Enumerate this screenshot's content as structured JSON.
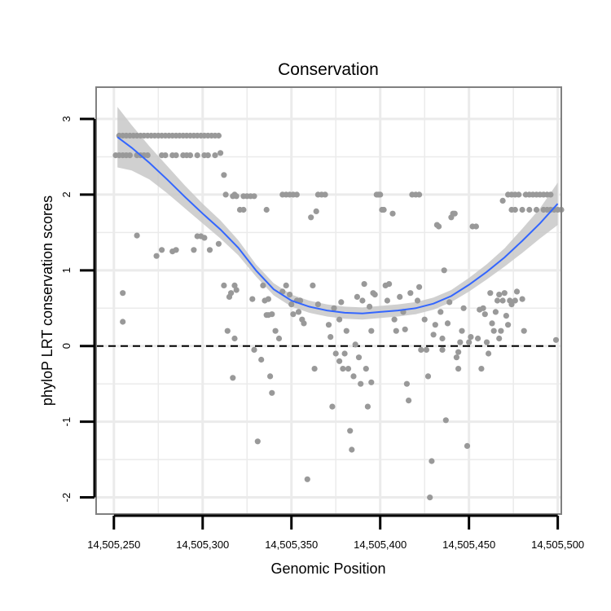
{
  "chart_data": {
    "type": "scatter",
    "title": "Conservation",
    "xlabel": "Genomic Position",
    "ylabel": "phyloP LRT conservation scores",
    "xlim": [
      14505240,
      14505502
    ],
    "ylim": [
      -2.22,
      3.42
    ],
    "x_ticks": [
      14505250,
      14505300,
      14505350,
      14505400,
      14505450,
      14505500
    ],
    "x_tick_labels": [
      "14,505,250",
      "14,505,300",
      "14,505,350",
      "14,505,400",
      "14,505,450",
      "14,505,500"
    ],
    "y_ticks": [
      -2,
      -1,
      0,
      1,
      2,
      3
    ],
    "y_tick_labels": [
      "-2",
      "-1",
      "0",
      "1",
      "2",
      "3"
    ],
    "reference_line": {
      "y": 0,
      "style": "dashed",
      "color": "#000000"
    },
    "colors": {
      "points": "#999999",
      "smooth_line": "#3366FF",
      "confidence_band": "#C8C8C8",
      "grid": "#EBEBEB",
      "panel_border": "#808080"
    },
    "points": [
      [
        14505251,
        2.52
      ],
      [
        14505253,
        2.52
      ],
      [
        14505255,
        2.52
      ],
      [
        14505257,
        2.52
      ],
      [
        14505259,
        2.52
      ],
      [
        14505263,
        2.52
      ],
      [
        14505265,
        2.52
      ],
      [
        14505267,
        2.52
      ],
      [
        14505269,
        2.52
      ],
      [
        14505253,
        2.78
      ],
      [
        14505255,
        2.78
      ],
      [
        14505257,
        2.78
      ],
      [
        14505259,
        2.78
      ],
      [
        14505261,
        2.78
      ],
      [
        14505263,
        2.78
      ],
      [
        14505265,
        2.78
      ],
      [
        14505267,
        2.78
      ],
      [
        14505269,
        2.78
      ],
      [
        14505271,
        2.78
      ],
      [
        14505273,
        2.78
      ],
      [
        14505275,
        2.78
      ],
      [
        14505277,
        2.78
      ],
      [
        14505279,
        2.78
      ],
      [
        14505281,
        2.78
      ],
      [
        14505283,
        2.78
      ],
      [
        14505285,
        2.78
      ],
      [
        14505287,
        2.78
      ],
      [
        14505289,
        2.78
      ],
      [
        14505291,
        2.78
      ],
      [
        14505293,
        2.78
      ],
      [
        14505295,
        2.78
      ],
      [
        14505297,
        2.78
      ],
      [
        14505299,
        2.78
      ],
      [
        14505301,
        2.78
      ],
      [
        14505303,
        2.78
      ],
      [
        14505305,
        2.78
      ],
      [
        14505307,
        2.78
      ],
      [
        14505309,
        2.78
      ],
      [
        14505277,
        2.52
      ],
      [
        14505279,
        2.52
      ],
      [
        14505283,
        2.52
      ],
      [
        14505285,
        2.52
      ],
      [
        14505289,
        2.52
      ],
      [
        14505291,
        2.52
      ],
      [
        14505293,
        2.52
      ],
      [
        14505297,
        2.52
      ],
      [
        14505301,
        2.52
      ],
      [
        14505303,
        2.52
      ],
      [
        14505307,
        2.52
      ],
      [
        14505310,
        2.55
      ],
      [
        14505255,
        0.7
      ],
      [
        14505255,
        0.32
      ],
      [
        14505263,
        1.46
      ],
      [
        14505274,
        1.19
      ],
      [
        14505277,
        1.27
      ],
      [
        14505283,
        1.25
      ],
      [
        14505285,
        1.27
      ],
      [
        14505295,
        1.27
      ],
      [
        14505297,
        1.45
      ],
      [
        14505299,
        1.45
      ],
      [
        14505301,
        1.43
      ],
      [
        14505304,
        1.27
      ],
      [
        14505309,
        1.35
      ],
      [
        14505312,
        2.26
      ],
      [
        14505313,
        2.0
      ],
      [
        14505317,
        1.98
      ],
      [
        14505318,
        2.0
      ],
      [
        14505319,
        1.98
      ],
      [
        14505321,
        1.8
      ],
      [
        14505323,
        1.8
      ],
      [
        14505323,
        1.98
      ],
      [
        14505325,
        1.98
      ],
      [
        14505327,
        1.98
      ],
      [
        14505329,
        1.98
      ],
      [
        14505336,
        1.8
      ],
      [
        14505312,
        0.8
      ],
      [
        14505315,
        0.65
      ],
      [
        14505316,
        0.7
      ],
      [
        14505318,
        0.8
      ],
      [
        14505319,
        0.74
      ],
      [
        14505314,
        0.2
      ],
      [
        14505318,
        0.1
      ],
      [
        14505317,
        -0.42
      ],
      [
        14505328,
        0.62
      ],
      [
        14505329,
        -0.05
      ],
      [
        14505331,
        -1.26
      ],
      [
        14505333,
        -0.18
      ],
      [
        14505334,
        0.8
      ],
      [
        14505335,
        0.6
      ],
      [
        14505336,
        0.41
      ],
      [
        14505337,
        0.62
      ],
      [
        14505337,
        0.41
      ],
      [
        14505339,
        0.42
      ],
      [
        14505338,
        -0.4
      ],
      [
        14505339,
        -0.62
      ],
      [
        14505341,
        0.2
      ],
      [
        14505343,
        0.1
      ],
      [
        14505345,
        0.72
      ],
      [
        14505347,
        0.8
      ],
      [
        14505349,
        0.68
      ],
      [
        14505345,
        2.0
      ],
      [
        14505347,
        2.0
      ],
      [
        14505349,
        2.0
      ],
      [
        14505351,
        2.0
      ],
      [
        14505353,
        2.0
      ],
      [
        14505350,
        0.55
      ],
      [
        14505351,
        0.42
      ],
      [
        14505353,
        0.6
      ],
      [
        14505354,
        0.45
      ],
      [
        14505355,
        0.6
      ],
      [
        14505356,
        0.35
      ],
      [
        14505357,
        0.3
      ],
      [
        14505359,
        -1.76
      ],
      [
        14505361,
        1.7
      ],
      [
        14505362,
        0.8
      ],
      [
        14505363,
        -0.3
      ],
      [
        14505364,
        1.78
      ],
      [
        14505365,
        0.55
      ],
      [
        14505365,
        2.0
      ],
      [
        14505367,
        2.0
      ],
      [
        14505369,
        2.0
      ],
      [
        14505371,
        0.28
      ],
      [
        14505372,
        0.12
      ],
      [
        14505373,
        -0.8
      ],
      [
        14505374,
        0.5
      ],
      [
        14505375,
        -0.1
      ],
      [
        14505377,
        0.35
      ],
      [
        14505377,
        -0.2
      ],
      [
        14505378,
        0.58
      ],
      [
        14505379,
        -0.3
      ],
      [
        14505380,
        -0.1
      ],
      [
        14505381,
        0.2
      ],
      [
        14505382,
        -0.3
      ],
      [
        14505383,
        -1.12
      ],
      [
        14505384,
        -1.37
      ],
      [
        14505385,
        -0.4
      ],
      [
        14505386,
        0.02
      ],
      [
        14505387,
        0.65
      ],
      [
        14505388,
        -0.15
      ],
      [
        14505389,
        -0.5
      ],
      [
        14505390,
        0.6
      ],
      [
        14505391,
        0.82
      ],
      [
        14505392,
        -0.3
      ],
      [
        14505393,
        -0.8
      ],
      [
        14505394,
        0.52
      ],
      [
        14505395,
        0.2
      ],
      [
        14505395,
        -0.48
      ],
      [
        14505396,
        0.7
      ],
      [
        14505397,
        0.68
      ],
      [
        14505398,
        2.0
      ],
      [
        14505399,
        2.0
      ],
      [
        14505400,
        2.0
      ],
      [
        14505401,
        1.8
      ],
      [
        14505402,
        1.8
      ],
      [
        14505403,
        0.8
      ],
      [
        14505404,
        0.6
      ],
      [
        14505405,
        0.82
      ],
      [
        14505407,
        1.75
      ],
      [
        14505408,
        0.35
      ],
      [
        14505409,
        0.2
      ],
      [
        14505411,
        0.65
      ],
      [
        14505413,
        0.45
      ],
      [
        14505414,
        0.22
      ],
      [
        14505415,
        -0.5
      ],
      [
        14505416,
        -0.72
      ],
      [
        14505417,
        0.7
      ],
      [
        14505418,
        2.0
      ],
      [
        14505420,
        2.0
      ],
      [
        14505422,
        2.0
      ],
      [
        14505421,
        0.6
      ],
      [
        14505422,
        0.78
      ],
      [
        14505423,
        -0.05
      ],
      [
        14505425,
        0.35
      ],
      [
        14505426,
        -0.05
      ],
      [
        14505427,
        -0.4
      ],
      [
        14505428,
        -2.0
      ],
      [
        14505429,
        -1.52
      ],
      [
        14505430,
        0.15
      ],
      [
        14505431,
        0.28
      ],
      [
        14505432,
        1.6
      ],
      [
        14505433,
        1.58
      ],
      [
        14505434,
        0.45
      ],
      [
        14505435,
        0.1
      ],
      [
        14505435,
        -0.05
      ],
      [
        14505436,
        1.0
      ],
      [
        14505437,
        -0.98
      ],
      [
        14505438,
        0.3
      ],
      [
        14505439,
        0.58
      ],
      [
        14505440,
        1.7
      ],
      [
        14505441,
        1.75
      ],
      [
        14505442,
        1.75
      ],
      [
        14505443,
        -0.15
      ],
      [
        14505444,
        -0.3
      ],
      [
        14505444,
        -0.08
      ],
      [
        14505445,
        0.05
      ],
      [
        14505446,
        0.2
      ],
      [
        14505447,
        0.5
      ],
      [
        14505449,
        -1.32
      ],
      [
        14505450,
        0.05
      ],
      [
        14505451,
        0.12
      ],
      [
        14505452,
        1.58
      ],
      [
        14505454,
        1.58
      ],
      [
        14505455,
        0.1
      ],
      [
        14505456,
        0.48
      ],
      [
        14505457,
        -0.3
      ],
      [
        14505458,
        0.5
      ],
      [
        14505459,
        0.42
      ],
      [
        14505460,
        0.05
      ],
      [
        14505461,
        -0.1
      ],
      [
        14505462,
        0.7
      ],
      [
        14505463,
        0.3
      ],
      [
        14505464,
        0.2
      ],
      [
        14505465,
        0.45
      ],
      [
        14505466,
        0.6
      ],
      [
        14505467,
        0.68
      ],
      [
        14505467,
        0.1
      ],
      [
        14505468,
        0.2
      ],
      [
        14505469,
        0.6
      ],
      [
        14505469,
        1.92
      ],
      [
        14505470,
        0.7
      ],
      [
        14505471,
        0.4
      ],
      [
        14505472,
        0.28
      ],
      [
        14505473,
        0.6
      ],
      [
        14505474,
        0.55
      ],
      [
        14505476,
        0.6
      ],
      [
        14505477,
        0.72
      ],
      [
        14505472,
        2.0
      ],
      [
        14505474,
        2.0
      ],
      [
        14505476,
        2.0
      ],
      [
        14505478,
        2.0
      ],
      [
        14505482,
        2.0
      ],
      [
        14505484,
        2.0
      ],
      [
        14505486,
        2.0
      ],
      [
        14505488,
        2.0
      ],
      [
        14505490,
        2.0
      ],
      [
        14505492,
        2.0
      ],
      [
        14505494,
        2.0
      ],
      [
        14505496,
        2.0
      ],
      [
        14505474,
        1.8
      ],
      [
        14505476,
        1.8
      ],
      [
        14505480,
        1.8
      ],
      [
        14505484,
        1.8
      ],
      [
        14505488,
        1.8
      ],
      [
        14505492,
        1.8
      ],
      [
        14505494,
        1.8
      ],
      [
        14505496,
        1.8
      ],
      [
        14505498,
        1.8
      ],
      [
        14505500,
        1.8
      ],
      [
        14505502,
        1.8
      ],
      [
        14505480,
        0.62
      ],
      [
        14505481,
        0.2
      ],
      [
        14505499,
        0.08
      ]
    ],
    "smooth": {
      "x": [
        14505252,
        14505260,
        14505270,
        14505280,
        14505290,
        14505300,
        14505310,
        14505320,
        14505330,
        14505340,
        14505350,
        14505360,
        14505370,
        14505380,
        14505390,
        14505400,
        14505410,
        14505420,
        14505430,
        14505440,
        14505450,
        14505460,
        14505470,
        14505480,
        14505490,
        14505500
      ],
      "y": [
        2.76,
        2.62,
        2.42,
        2.2,
        1.97,
        1.75,
        1.54,
        1.3,
        1.0,
        0.75,
        0.6,
        0.52,
        0.47,
        0.44,
        0.43,
        0.45,
        0.47,
        0.5,
        0.56,
        0.66,
        0.81,
        0.98,
        1.17,
        1.39,
        1.62,
        1.88
      ],
      "lower": [
        2.36,
        2.32,
        2.2,
        2.02,
        1.82,
        1.62,
        1.42,
        1.2,
        0.92,
        0.67,
        0.52,
        0.44,
        0.39,
        0.36,
        0.35,
        0.37,
        0.39,
        0.42,
        0.48,
        0.58,
        0.72,
        0.88,
        1.05,
        1.23,
        1.42,
        1.6
      ],
      "upper": [
        3.16,
        2.92,
        2.64,
        2.38,
        2.12,
        1.88,
        1.66,
        1.4,
        1.08,
        0.83,
        0.68,
        0.6,
        0.55,
        0.52,
        0.51,
        0.53,
        0.55,
        0.58,
        0.64,
        0.74,
        0.9,
        1.08,
        1.29,
        1.55,
        1.82,
        2.16
      ]
    }
  }
}
